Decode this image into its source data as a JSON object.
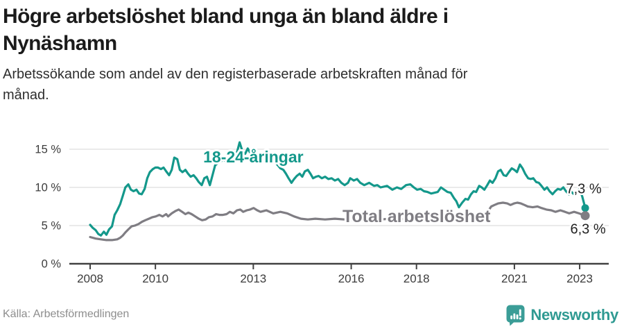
{
  "header": {
    "title_lines": [
      "Högre arbetslöshet bland unga än bland äldre i",
      "Nynäshamn"
    ],
    "subtitle_lines": [
      "Arbetssökande som andel av den registerbaserade arbetskraften månad för",
      "månad."
    ]
  },
  "footer": {
    "source": "Källa: Arbetsförmedlingen",
    "brand": "Newsworthy"
  },
  "colors": {
    "young": "#14988b",
    "total": "#7f7d83",
    "axis": "#414141",
    "grid": "#e3e3e3",
    "value_label": "#222222",
    "brand_teal": "#3b9d97"
  },
  "chart_data": {
    "type": "line",
    "title": "Högre arbetslöshet bland unga än bland äldre i Nynäshamn",
    "subtitle": "Arbetssökande som andel av den registerbaserade arbetskraften månad för månad.",
    "unit": "%",
    "grid": true,
    "legend_position": "inline-labels",
    "ylim": [
      0,
      16.5
    ],
    "xlim": [
      2007.35,
      2023.9
    ],
    "y_ticks": [
      {
        "value": 0,
        "label": "0 %"
      },
      {
        "value": 5,
        "label": "5 %"
      },
      {
        "value": 10,
        "label": "10 %"
      },
      {
        "value": 15,
        "label": "15 %"
      }
    ],
    "x_ticks": [
      {
        "value": 2008,
        "label": "2008"
      },
      {
        "value": 2010,
        "label": "2010"
      },
      {
        "value": 2013,
        "label": "2013"
      },
      {
        "value": 2016,
        "label": "2016"
      },
      {
        "value": 2018,
        "label": "2018"
      },
      {
        "value": 2021,
        "label": "2021"
      },
      {
        "value": 2023,
        "label": "2023"
      }
    ],
    "series": [
      {
        "name": "18-24-åringar",
        "color": "#14988b",
        "end_label": "7,3 %",
        "end_value": 7.3,
        "label_anchor": {
          "x": 2013.0,
          "y": 14.0
        },
        "points": [
          [
            2008.0,
            5.1
          ],
          [
            2008.08,
            4.7
          ],
          [
            2008.17,
            4.4
          ],
          [
            2008.25,
            3.9
          ],
          [
            2008.33,
            3.7
          ],
          [
            2008.42,
            4.2
          ],
          [
            2008.5,
            3.8
          ],
          [
            2008.58,
            4.5
          ],
          [
            2008.67,
            4.9
          ],
          [
            2008.75,
            6.4
          ],
          [
            2008.83,
            7.0
          ],
          [
            2008.92,
            7.8
          ],
          [
            2009.0,
            8.9
          ],
          [
            2009.08,
            10.0
          ],
          [
            2009.17,
            10.4
          ],
          [
            2009.25,
            9.7
          ],
          [
            2009.33,
            9.5
          ],
          [
            2009.42,
            9.7
          ],
          [
            2009.5,
            9.2
          ],
          [
            2009.58,
            9.1
          ],
          [
            2009.67,
            9.8
          ],
          [
            2009.75,
            11.2
          ],
          [
            2009.83,
            12.0
          ],
          [
            2009.92,
            12.4
          ],
          [
            2010.0,
            12.6
          ],
          [
            2010.08,
            12.6
          ],
          [
            2010.17,
            12.4
          ],
          [
            2010.25,
            12.6
          ],
          [
            2010.33,
            12.1
          ],
          [
            2010.42,
            11.6
          ],
          [
            2010.5,
            12.3
          ],
          [
            2010.58,
            13.9
          ],
          [
            2010.67,
            13.7
          ],
          [
            2010.75,
            12.3
          ],
          [
            2010.83,
            12.0
          ],
          [
            2010.92,
            12.3
          ],
          [
            2011.0,
            11.8
          ],
          [
            2011.08,
            11.4
          ],
          [
            2011.17,
            11.6
          ],
          [
            2011.25,
            11.2
          ],
          [
            2011.33,
            10.7
          ],
          [
            2011.42,
            10.3
          ],
          [
            2011.5,
            11.2
          ],
          [
            2011.58,
            11.4
          ],
          [
            2011.67,
            10.3
          ],
          [
            2011.75,
            11.6
          ],
          [
            2011.83,
            12.9
          ],
          [
            2011.92,
            13.2
          ],
          [
            2012.0,
            13.4
          ],
          [
            2012.08,
            13.6
          ],
          [
            2012.17,
            13.4
          ],
          [
            2012.25,
            13.7
          ],
          [
            2012.33,
            14.0
          ],
          [
            2012.42,
            14.3
          ],
          [
            2012.5,
            14.6
          ],
          [
            2012.58,
            15.9
          ],
          [
            2012.67,
            14.7
          ],
          [
            2012.75,
            14.4
          ],
          [
            2012.83,
            15.1
          ],
          [
            2012.92,
            14.4
          ],
          [
            2013.0,
            14.1
          ],
          [
            2013.08,
            14.4
          ],
          [
            2013.17,
            13.9
          ],
          [
            2013.25,
            14.1
          ],
          [
            2013.33,
            13.7
          ],
          [
            2013.42,
            13.9
          ],
          [
            2013.5,
            14.2
          ],
          [
            2013.58,
            13.6
          ],
          [
            2013.67,
            13.3
          ],
          [
            2013.75,
            12.9
          ],
          [
            2013.83,
            12.5
          ],
          [
            2013.92,
            12.3
          ],
          [
            2014.0,
            11.8
          ],
          [
            2014.08,
            11.2
          ],
          [
            2014.17,
            10.6
          ],
          [
            2014.25,
            11.1
          ],
          [
            2014.33,
            11.5
          ],
          [
            2014.42,
            11.8
          ],
          [
            2014.5,
            11.4
          ],
          [
            2014.58,
            12.1
          ],
          [
            2014.67,
            12.3
          ],
          [
            2014.75,
            11.8
          ],
          [
            2014.83,
            11.2
          ],
          [
            2014.92,
            11.4
          ],
          [
            2015.0,
            11.5
          ],
          [
            2015.1,
            11.2
          ],
          [
            2015.2,
            11.4
          ],
          [
            2015.3,
            11.1
          ],
          [
            2015.4,
            11.2
          ],
          [
            2015.5,
            10.9
          ],
          [
            2015.6,
            11.1
          ],
          [
            2015.7,
            10.6
          ],
          [
            2015.8,
            10.3
          ],
          [
            2015.9,
            10.6
          ],
          [
            2015.97,
            11.2
          ],
          [
            2016.08,
            10.9
          ],
          [
            2016.18,
            11.1
          ],
          [
            2016.28,
            10.6
          ],
          [
            2016.4,
            10.3
          ],
          [
            2016.55,
            10.6
          ],
          [
            2016.7,
            10.2
          ],
          [
            2016.8,
            10.3
          ],
          [
            2016.9,
            10.0
          ],
          [
            2017.1,
            10.2
          ],
          [
            2017.26,
            9.7
          ],
          [
            2017.4,
            10.0
          ],
          [
            2017.53,
            9.8
          ],
          [
            2017.68,
            10.3
          ],
          [
            2017.81,
            10.4
          ],
          [
            2017.92,
            10.0
          ],
          [
            2018.02,
            9.7
          ],
          [
            2018.13,
            9.8
          ],
          [
            2018.23,
            9.5
          ],
          [
            2018.34,
            9.4
          ],
          [
            2018.45,
            9.2
          ],
          [
            2018.55,
            9.3
          ],
          [
            2018.65,
            9.4
          ],
          [
            2018.75,
            10.0
          ],
          [
            2018.85,
            9.7
          ],
          [
            2018.95,
            9.4
          ],
          [
            2019.05,
            9.3
          ],
          [
            2019.15,
            8.6
          ],
          [
            2019.22,
            8.2
          ],
          [
            2019.3,
            7.4
          ],
          [
            2019.4,
            8.0
          ],
          [
            2019.5,
            8.5
          ],
          [
            2019.58,
            8.4
          ],
          [
            2019.67,
            9.1
          ],
          [
            2019.75,
            9.5
          ],
          [
            2019.83,
            9.4
          ],
          [
            2019.92,
            10.2
          ],
          [
            2020.0,
            10.0
          ],
          [
            2020.08,
            9.7
          ],
          [
            2020.17,
            10.3
          ],
          [
            2020.25,
            10.9
          ],
          [
            2020.33,
            10.6
          ],
          [
            2020.42,
            11.2
          ],
          [
            2020.5,
            12.1
          ],
          [
            2020.58,
            12.3
          ],
          [
            2020.67,
            11.6
          ],
          [
            2020.75,
            11.5
          ],
          [
            2020.83,
            12.0
          ],
          [
            2020.92,
            12.5
          ],
          [
            2021.0,
            12.3
          ],
          [
            2021.08,
            12.0
          ],
          [
            2021.17,
            13.0
          ],
          [
            2021.25,
            12.5
          ],
          [
            2021.33,
            11.8
          ],
          [
            2021.42,
            11.2
          ],
          [
            2021.5,
            11.1
          ],
          [
            2021.58,
            11.2
          ],
          [
            2021.67,
            10.7
          ],
          [
            2021.75,
            10.6
          ],
          [
            2021.83,
            10.2
          ],
          [
            2021.92,
            9.7
          ],
          [
            2022.0,
            10.0
          ],
          [
            2022.08,
            9.5
          ],
          [
            2022.17,
            9.1
          ],
          [
            2022.25,
            9.5
          ],
          [
            2022.33,
            9.8
          ],
          [
            2022.42,
            9.7
          ],
          [
            2022.5,
            10.0
          ],
          [
            2022.58,
            9.5
          ],
          [
            2022.67,
            9.1
          ],
          [
            2022.75,
            9.4
          ],
          [
            2022.83,
            9.1
          ],
          [
            2022.92,
            9.5
          ],
          [
            2023.0,
            9.8
          ],
          [
            2023.08,
            8.8
          ],
          [
            2023.17,
            7.3
          ]
        ]
      },
      {
        "name": "Total arbetslöshet",
        "color": "#7f7d83",
        "end_label": "6,3 %",
        "end_value": 6.3,
        "label_anchor": {
          "x": 2018.0,
          "y": 6.2
        },
        "points": [
          [
            2008.0,
            3.5
          ],
          [
            2008.17,
            3.3
          ],
          [
            2008.33,
            3.2
          ],
          [
            2008.5,
            3.1
          ],
          [
            2008.67,
            3.1
          ],
          [
            2008.83,
            3.2
          ],
          [
            2008.92,
            3.4
          ],
          [
            2009.0,
            3.7
          ],
          [
            2009.08,
            4.1
          ],
          [
            2009.17,
            4.5
          ],
          [
            2009.27,
            4.9
          ],
          [
            2009.37,
            5.0
          ],
          [
            2009.48,
            5.2
          ],
          [
            2009.59,
            5.5
          ],
          [
            2009.69,
            5.7
          ],
          [
            2009.8,
            5.9
          ],
          [
            2009.91,
            6.1
          ],
          [
            2010.01,
            6.2
          ],
          [
            2010.12,
            6.4
          ],
          [
            2010.22,
            6.2
          ],
          [
            2010.33,
            6.5
          ],
          [
            2010.39,
            6.2
          ],
          [
            2010.5,
            6.6
          ],
          [
            2010.61,
            6.9
          ],
          [
            2010.71,
            7.1
          ],
          [
            2010.82,
            6.8
          ],
          [
            2010.92,
            6.5
          ],
          [
            2011.01,
            6.7
          ],
          [
            2011.11,
            6.5
          ],
          [
            2011.22,
            6.2
          ],
          [
            2011.33,
            5.9
          ],
          [
            2011.43,
            5.7
          ],
          [
            2011.54,
            5.8
          ],
          [
            2011.64,
            6.1
          ],
          [
            2011.75,
            6.2
          ],
          [
            2011.86,
            6.5
          ],
          [
            2011.96,
            6.4
          ],
          [
            2012.07,
            6.4
          ],
          [
            2012.18,
            6.5
          ],
          [
            2012.28,
            6.8
          ],
          [
            2012.39,
            6.6
          ],
          [
            2012.5,
            7.0
          ],
          [
            2012.6,
            7.1
          ],
          [
            2012.69,
            6.8
          ],
          [
            2012.8,
            7.0
          ],
          [
            2012.9,
            7.1
          ],
          [
            2013.01,
            7.3
          ],
          [
            2013.12,
            7.0
          ],
          [
            2013.22,
            6.8
          ],
          [
            2013.4,
            7.0
          ],
          [
            2013.61,
            6.6
          ],
          [
            2013.83,
            6.8
          ],
          [
            2014.04,
            6.6
          ],
          [
            2014.25,
            6.2
          ],
          [
            2014.46,
            5.9
          ],
          [
            2014.67,
            5.8
          ],
          [
            2014.9,
            5.9
          ],
          [
            2015.2,
            5.8
          ],
          [
            2015.5,
            5.9
          ],
          [
            2015.8,
            5.8
          ],
          [
            2016.05,
            5.7
          ],
          [
            2016.3,
            5.8
          ],
          [
            2016.6,
            5.9
          ],
          [
            2016.9,
            5.8
          ],
          [
            2017.2,
            5.9
          ],
          [
            2017.5,
            5.8
          ],
          [
            2017.8,
            6.0
          ],
          [
            2018.1,
            6.1
          ],
          [
            2018.4,
            6.0
          ],
          [
            2018.7,
            6.1
          ],
          [
            2019.0,
            6.2
          ],
          [
            2019.3,
            6.1
          ],
          [
            2019.6,
            6.3
          ],
          [
            2019.9,
            6.4
          ],
          [
            2020.05,
            6.5
          ],
          [
            2020.18,
            6.8
          ],
          [
            2020.29,
            7.5
          ],
          [
            2020.39,
            7.7
          ],
          [
            2020.5,
            7.9
          ],
          [
            2020.65,
            8.0
          ],
          [
            2020.78,
            7.9
          ],
          [
            2020.88,
            7.7
          ],
          [
            2020.99,
            7.9
          ],
          [
            2021.09,
            8.0
          ],
          [
            2021.2,
            7.9
          ],
          [
            2021.31,
            7.7
          ],
          [
            2021.41,
            7.5
          ],
          [
            2021.56,
            7.4
          ],
          [
            2021.71,
            7.5
          ],
          [
            2021.83,
            7.3
          ],
          [
            2021.98,
            7.1
          ],
          [
            2022.13,
            7.0
          ],
          [
            2022.26,
            6.8
          ],
          [
            2022.41,
            7.0
          ],
          [
            2022.55,
            6.8
          ],
          [
            2022.68,
            6.6
          ],
          [
            2022.83,
            6.8
          ],
          [
            2022.98,
            6.6
          ],
          [
            2023.17,
            6.3
          ]
        ]
      }
    ]
  }
}
